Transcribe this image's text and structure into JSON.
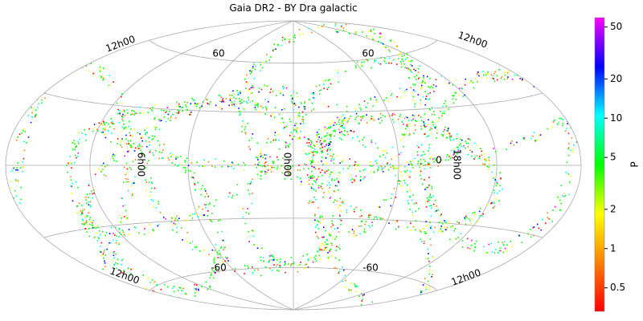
{
  "map": {
    "title": "Gaia DR2 - BY Dra galactic",
    "grid_labels": [
      "12h00",
      "60",
      "60",
      "12h00",
      "6h00",
      "0h00",
      "18h00",
      "0",
      "-60",
      "-60",
      "12h00",
      "12h00"
    ],
    "colorbar": {
      "label": "P",
      "scale": "log",
      "lim": [
        0.33,
        59
      ],
      "ticks": [
        0.5,
        1,
        2,
        5,
        10,
        20,
        50
      ],
      "colors": [
        "#ff0000",
        "#ff8000",
        "#ffff00",
        "#00ff00",
        "#00ffff",
        "#0000ff",
        "#ff00ff"
      ]
    }
  }
}
